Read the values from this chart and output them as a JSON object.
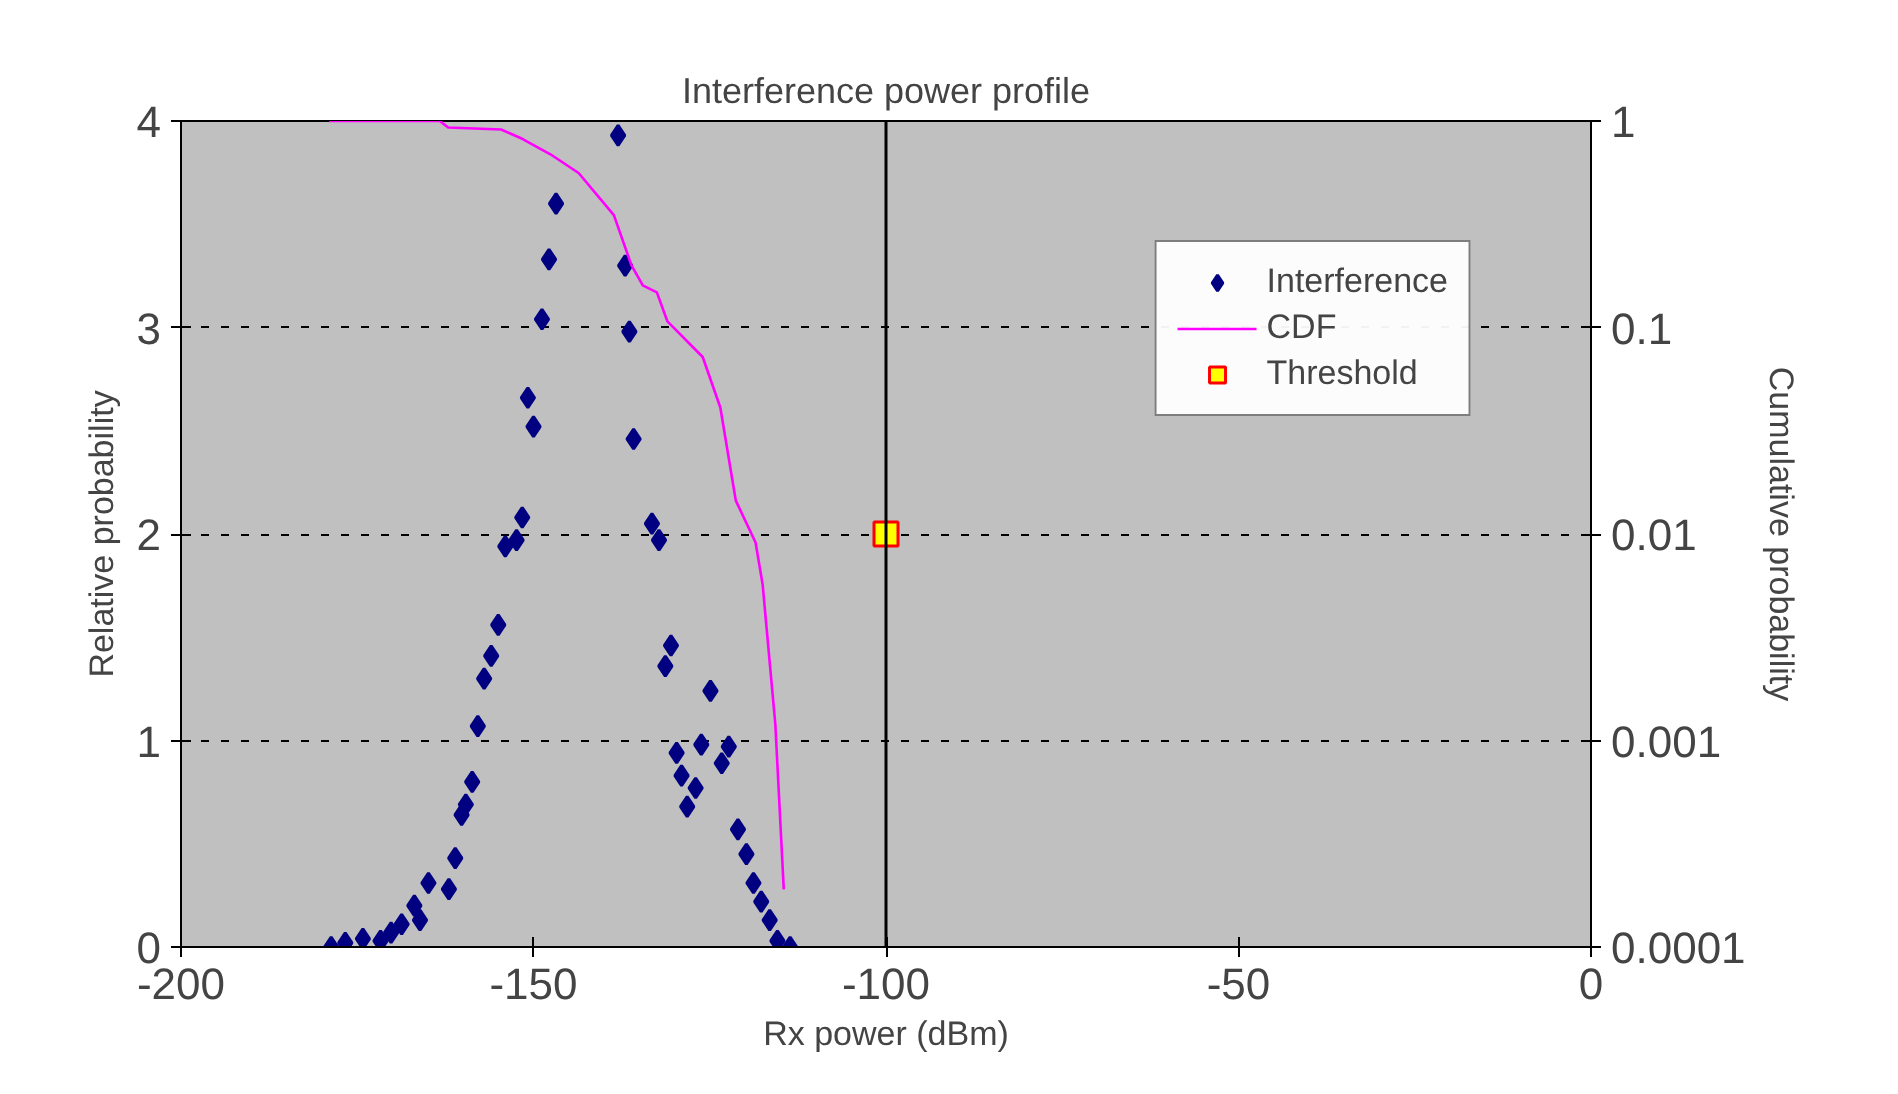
{
  "chart_data": {
    "type": "scatter",
    "title": "Interference power profile",
    "xlabel": "Rx power (dBm)",
    "ylabel": "Relative probability",
    "y2label": "Cumulative probability",
    "xlim": [
      -200,
      0
    ],
    "xticks": [
      -200,
      -150,
      -100,
      -50,
      0
    ],
    "ylim": [
      0,
      4
    ],
    "yticks": [
      0,
      1,
      2,
      3,
      4
    ],
    "y2lim": [
      0.0001,
      1
    ],
    "y2ticks": [
      0.0001,
      0.001,
      0.01,
      0.1,
      1
    ],
    "log": "y2",
    "grid": "y",
    "legend": "top right",
    "ref_lines": [
      {
        "axis": "x",
        "value": -100,
        "color": "#000000"
      }
    ],
    "series": [
      {
        "name": "Interference",
        "marker": "diamond",
        "color": "#000080",
        "x": [
          -178.7,
          -176.7,
          -174.2,
          -171.7,
          -170.2,
          -168.7,
          -166.9,
          -166.1,
          -164.9,
          -162.0,
          -161.1,
          -160.2,
          -159.6,
          -158.7,
          -157.9,
          -157.0,
          -156.0,
          -155.0,
          -154.0,
          -152.4,
          -151.6,
          -150.8,
          -150.0,
          -148.8,
          -147.8,
          -146.8,
          -138.0,
          -137.0,
          -136.4,
          -135.8,
          -133.2,
          -132.2,
          -131.3,
          -130.5,
          -129.7,
          -129.0,
          -128.2,
          -127.0,
          -126.2,
          -124.9,
          -123.3,
          -122.3,
          -121.0,
          -119.8,
          -118.8,
          -117.7,
          -116.5,
          -115.4,
          -113.6
        ],
        "values": [
          0.0,
          0.02,
          0.04,
          0.03,
          0.07,
          0.11,
          0.2,
          0.13,
          0.31,
          0.28,
          0.43,
          0.64,
          0.69,
          0.8,
          1.07,
          1.3,
          1.41,
          1.56,
          1.94,
          1.97,
          2.08,
          2.66,
          2.52,
          3.04,
          3.33,
          3.6,
          3.93,
          3.3,
          2.98,
          2.46,
          2.05,
          1.97,
          1.36,
          1.46,
          0.94,
          0.83,
          0.68,
          0.77,
          0.98,
          1.24,
          0.89,
          0.97,
          0.57,
          0.45,
          0.31,
          0.22,
          0.13,
          0.03,
          0.0
        ]
      },
      {
        "name": "CDF",
        "type": "line",
        "axis": "y2",
        "marker": "none",
        "color": "#ff00ff",
        "x": [
          -179,
          -163.3,
          -162.1,
          -154.6,
          -151.6,
          -147.6,
          -143.6,
          -138.6,
          -136.1,
          -134.5,
          -132.5,
          -131.0,
          -126.0,
          -123.5,
          -121.3,
          -118.5,
          -117.5,
          -115.7,
          -114.5
        ],
        "values": [
          1,
          1,
          0.93,
          0.91,
          0.82,
          0.69,
          0.56,
          0.35,
          0.2,
          0.16,
          0.148,
          0.107,
          0.072,
          0.041,
          0.0145,
          0.0091,
          0.0057,
          0.0012,
          0.00019
        ]
      },
      {
        "name": "Threshold",
        "marker": "square",
        "color": "#ffff00",
        "x": [
          -100
        ],
        "values": [
          2
        ]
      }
    ]
  }
}
